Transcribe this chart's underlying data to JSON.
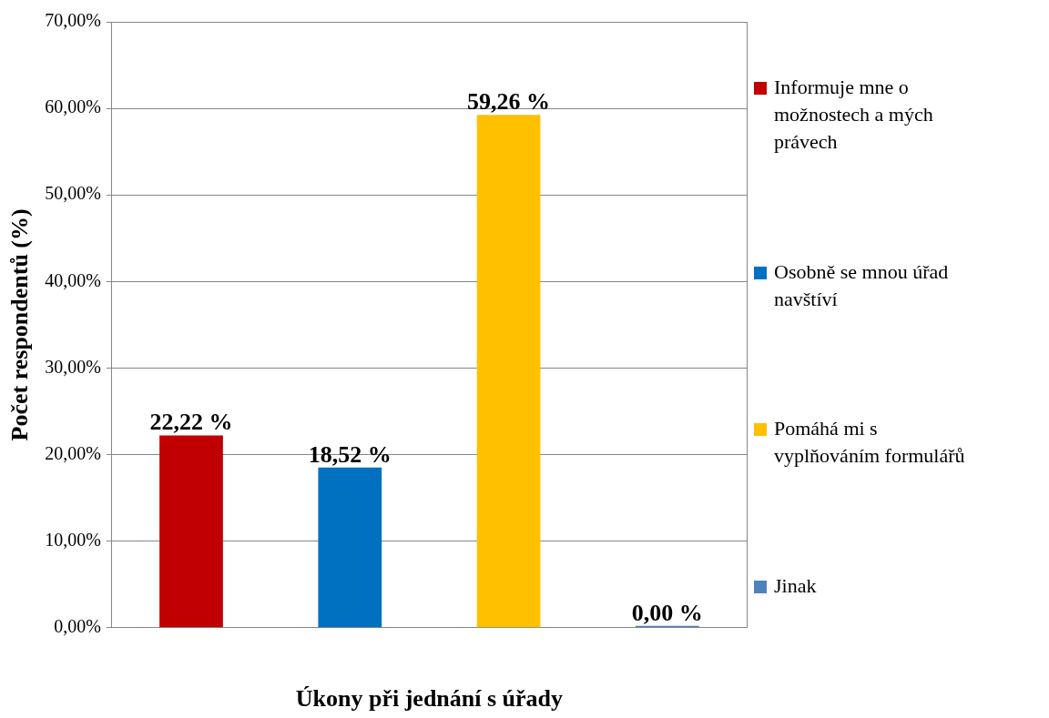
{
  "chart_data": {
    "type": "bar",
    "xlabel": "Úkony při jednání s úřady",
    "ylabel": "Počet respondentů (%)",
    "categories": [
      null
    ],
    "series": [
      {
        "name": "Informuje mne o možnostech a mých právech",
        "color": "#c00000",
        "values": [
          22.22
        ],
        "value_labels": [
          "22,22 %"
        ]
      },
      {
        "name": "Osobně se mnou úřad navštíví",
        "color": "#0070c0",
        "values": [
          18.52
        ],
        "value_labels": [
          "18,52 %"
        ]
      },
      {
        "name": "Pomáhá mi s vyplňováním formulářů",
        "color": "#ffc000",
        "values": [
          59.26
        ],
        "value_labels": [
          "59,26 %"
        ]
      },
      {
        "name": "Jinak",
        "color": "#4f81bd",
        "values": [
          0
        ],
        "value_labels": [
          "0,00 %"
        ]
      }
    ],
    "ylim": [
      0,
      70
    ],
    "yticks": [
      {
        "value": 0,
        "label": "0,00%"
      },
      {
        "value": 10,
        "label": "10,00%"
      },
      {
        "value": 20,
        "label": "20,00%"
      },
      {
        "value": 30,
        "label": "30,00%"
      },
      {
        "value": 40,
        "label": "40,00%"
      },
      {
        "value": 50,
        "label": "50,00%"
      },
      {
        "value": 60,
        "label": "60,00%"
      },
      {
        "value": 70,
        "label": "70,00%"
      }
    ],
    "grid": "y",
    "legend": "right"
  }
}
